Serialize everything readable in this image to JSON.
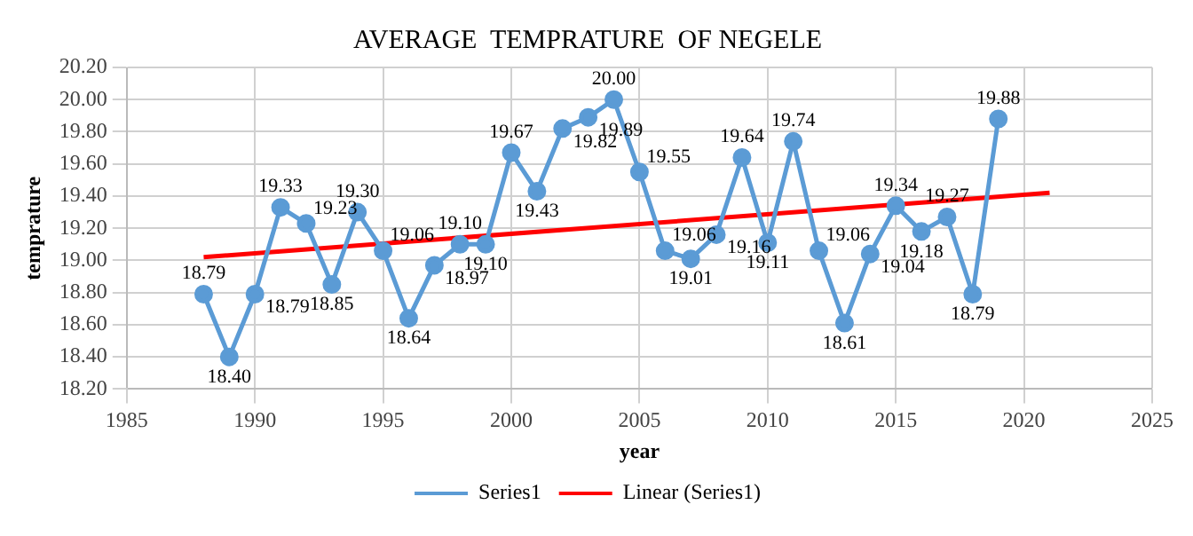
{
  "chart_data": {
    "type": "line",
    "title": "AVERAGE  TEMPRATURE  OF NEGELE",
    "xlabel": "year",
    "ylabel": "temprature",
    "series": [
      {
        "name": "Series1",
        "color": "#5b9bd5",
        "marker": "circle",
        "x": [
          1988,
          1989,
          1990,
          1991,
          1992,
          1993,
          1994,
          1995,
          1996,
          1997,
          1998,
          1999,
          2000,
          2001,
          2002,
          2003,
          2004,
          2005,
          2006,
          2007,
          2008,
          2009,
          2010,
          2011,
          2012,
          2013,
          2014,
          2015,
          2016,
          2017,
          2018,
          2019
        ],
        "values": [
          18.79,
          18.4,
          18.79,
          19.33,
          19.23,
          18.85,
          19.3,
          19.06,
          18.64,
          18.97,
          19.1,
          19.1,
          19.67,
          19.43,
          19.82,
          19.89,
          20.0,
          19.55,
          19.06,
          19.01,
          19.16,
          19.64,
          19.11,
          19.74,
          19.06,
          18.61,
          19.04,
          19.34,
          19.18,
          19.27,
          18.79,
          19.88
        ],
        "value_labels": [
          "18.79",
          "18.40",
          "18.79",
          "19.33",
          "19.23",
          "18.85",
          "19.30",
          "19.06",
          "18.64",
          "18.97",
          "19.10",
          "19.10",
          "19.67",
          "19.43",
          "19.82",
          "19.89",
          "20.00",
          "19.55",
          "19.06",
          "19.01",
          "19.16",
          "19.64",
          "19.11",
          "19.74",
          "19.06",
          "18.61",
          "19.04",
          "19.34",
          "19.18",
          "19.27",
          "18.79",
          "19.88"
        ]
      },
      {
        "name": "Linear (Series1)",
        "color": "#ff0000",
        "marker": "none",
        "x": [
          1988,
          2021
        ],
        "values": [
          19.02,
          19.42
        ]
      }
    ],
    "xlim": [
      1985,
      2025
    ],
    "xticks": [
      1985,
      1990,
      1995,
      2000,
      2005,
      2010,
      2015,
      2020,
      2025
    ],
    "ylim": [
      18.2,
      20.2
    ],
    "yticks": [
      {
        "value": 18.2,
        "label": "18.20"
      },
      {
        "value": 18.4,
        "label": "18.40"
      },
      {
        "value": 18.6,
        "label": "18.60"
      },
      {
        "value": 18.8,
        "label": "18.80"
      },
      {
        "value": 19,
        "label": "19.00"
      },
      {
        "value": 19.2,
        "label": "19.20"
      },
      {
        "value": 19.4,
        "label": "19.40"
      },
      {
        "value": 19.6,
        "label": "19.60"
      },
      {
        "value": 19.8,
        "label": "19.80"
      },
      {
        "value": 20,
        "label": "20.00"
      },
      {
        "value": 20.2,
        "label": "20.20"
      }
    ],
    "grid": true,
    "legend": "bottom",
    "line_style": "solid"
  }
}
